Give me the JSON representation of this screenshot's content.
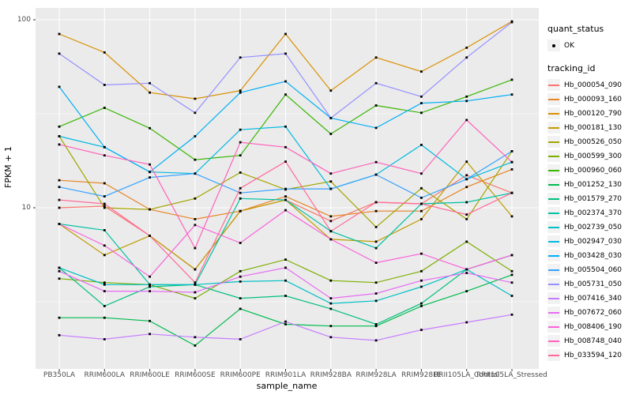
{
  "axes": {
    "y_title": "FPKM + 1",
    "x_title": "sample_name"
  },
  "legend": {
    "quant_status_title": "quant_status",
    "ok_label": "OK",
    "tracking_title": "tracking_id"
  },
  "chart_data": {
    "type": "line",
    "title": "",
    "xlabel": "sample_name",
    "ylabel": "FPKM + 1",
    "y_scale": "log10",
    "ylim": [
      1.4,
      110
    ],
    "y_major_ticks": [
      100,
      10
    ],
    "y_minor_gridlines": [
      31.62,
      3.162
    ],
    "grid": true,
    "legend_position": "right",
    "point_shape": "small black point (quant_status = OK)",
    "categories": [
      "PB350LA",
      "RRIM600LA",
      "RRIM600LE",
      "RRIM600SE",
      "RRIM600PE",
      "RRIM901LA",
      "RRIM928BA",
      "RRIM928LA",
      "RRIM928LE",
      "RRII105LA_Control",
      "RRII105LA_Stressed"
    ],
    "series": [
      {
        "name": "Hb_000054_090",
        "color": "#F8766D",
        "values": [
          10,
          10.2,
          7.1,
          4.7,
          9.6,
          11,
          8.5,
          10.7,
          10.5,
          14.9,
          12
        ]
      },
      {
        "name": "Hb_000093_160",
        "color": "#E88526",
        "values": [
          14,
          13.5,
          9.8,
          8.7,
          9.6,
          11.5,
          9.0,
          9.6,
          9.6,
          12.9,
          16
        ]
      },
      {
        "name": "Hb_000120_790",
        "color": "#D89000",
        "values": [
          84,
          67,
          41,
          38,
          42,
          84,
          42,
          63,
          53,
          71,
          98
        ]
      },
      {
        "name": "Hb_000181_130",
        "color": "#C09B00",
        "values": [
          8.2,
          5.6,
          7.1,
          4.7,
          9.6,
          11,
          6.8,
          6.6,
          8.7,
          17.6,
          9
        ]
      },
      {
        "name": "Hb_000526_050",
        "color": "#A3A500",
        "values": [
          24,
          10,
          9.8,
          11.2,
          15.4,
          12.5,
          13.8,
          7.9,
          12.7,
          8.7,
          20
        ]
      },
      {
        "name": "Hb_000599_300",
        "color": "#7CAE00",
        "values": [
          4.2,
          4.0,
          3.9,
          3.3,
          4.6,
          5.3,
          4.1,
          4.0,
          4.6,
          6.6,
          4.6
        ]
      },
      {
        "name": "Hb_000960_060",
        "color": "#39B600",
        "values": [
          27,
          34,
          26.5,
          18,
          19,
          40,
          24.7,
          35,
          32,
          39,
          48
        ]
      },
      {
        "name": "Hb_001252_130",
        "color": "#00BB4E",
        "values": [
          2.6,
          2.6,
          2.5,
          1.85,
          2.9,
          2.4,
          2.35,
          2.35,
          3.0,
          3.6,
          4.4
        ]
      },
      {
        "name": "Hb_001579_270",
        "color": "#00BF7D",
        "values": [
          4.8,
          3.0,
          3.8,
          3.9,
          3.3,
          3.4,
          2.9,
          2.4,
          3.1,
          4.7,
          5.6
        ]
      },
      {
        "name": "Hb_002374_370",
        "color": "#00C1A3",
        "values": [
          8.2,
          7.6,
          3.9,
          3.9,
          11.2,
          11,
          7.5,
          6.1,
          10.5,
          10.7,
          12
        ]
      },
      {
        "name": "Hb_002739_050",
        "color": "#00BFC4",
        "values": [
          4.8,
          3.9,
          3.9,
          3.9,
          4.05,
          4.1,
          3.1,
          3.2,
          3.8,
          4.7,
          3.4
        ]
      },
      {
        "name": "Hb_002947_030",
        "color": "#00BAE0",
        "values": [
          24,
          21,
          15.5,
          15.2,
          26,
          27,
          12.6,
          15,
          21.6,
          14.2,
          17.5
        ]
      },
      {
        "name": "Hb_003428_030",
        "color": "#00B0F6",
        "values": [
          44,
          21,
          15.5,
          24,
          41,
          47,
          30,
          26.6,
          36,
          37,
          40
        ]
      },
      {
        "name": "Hb_005504_060",
        "color": "#35A2FF",
        "values": [
          12.9,
          11.5,
          14.5,
          15.2,
          12,
          12.6,
          12.6,
          15,
          11.3,
          14.2,
          20
        ]
      },
      {
        "name": "Hb_005731_050",
        "color": "#9590FF",
        "values": [
          66,
          45,
          46,
          32,
          63,
          66,
          30,
          46,
          39,
          63,
          97
        ]
      },
      {
        "name": "Hb_007416_340",
        "color": "#C77CFF",
        "values": [
          2.1,
          2.0,
          2.13,
          2.05,
          2.0,
          2.48,
          2.05,
          1.97,
          2.24,
          2.46,
          2.7
        ]
      },
      {
        "name": "Hb_007672_060",
        "color": "#E76BF3",
        "values": [
          4.6,
          3.6,
          3.6,
          3.55,
          4.3,
          4.8,
          3.3,
          3.5,
          4.1,
          4.5,
          4.0
        ]
      },
      {
        "name": "Hb_008406_190",
        "color": "#FA62DB",
        "values": [
          8.2,
          6.3,
          4.3,
          8.1,
          6.5,
          9.7,
          6.8,
          5.1,
          5.7,
          4.7,
          5.6
        ]
      },
      {
        "name": "Hb_008748_040",
        "color": "#FF62BC",
        "values": [
          21.7,
          19,
          17,
          6.1,
          22.3,
          21,
          15.2,
          17.5,
          15.2,
          29.3,
          17.5
        ]
      },
      {
        "name": "Hb_033594_120",
        "color": "#FF6A98",
        "values": [
          11,
          10.5,
          7.1,
          4.0,
          12.7,
          17.6,
          7.5,
          10.7,
          10.5,
          9.2,
          12
        ]
      }
    ],
    "colors": {
      "panel_background": "#EBEBEB",
      "gridline": "#FFFFFF",
      "tick_text": "#4d4d4d",
      "point": "#000000",
      "legend_key_background": "#F2F2F2"
    }
  }
}
